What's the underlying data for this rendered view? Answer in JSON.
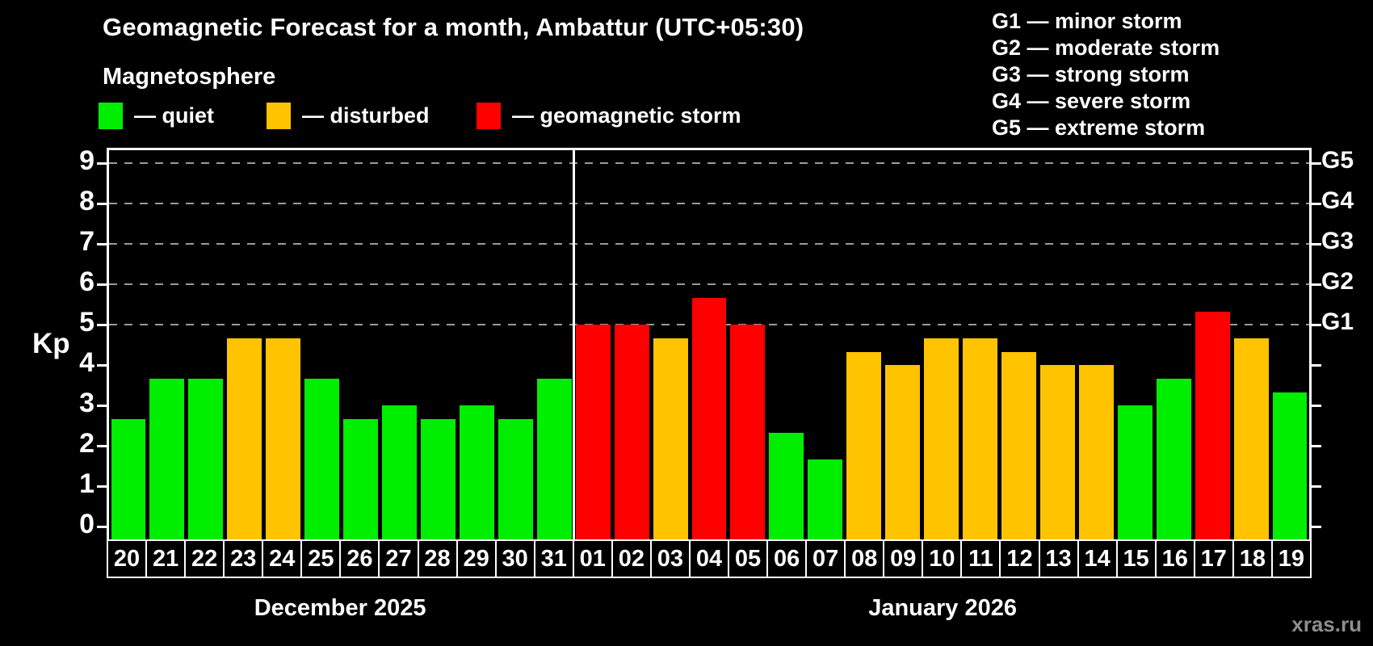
{
  "title": "Geomagnetic Forecast for a month, Ambattur (UTC+05:30)",
  "subtitle": "Magnetosphere",
  "magnetosphere_legend": [
    {
      "key": "quiet",
      "label": "— quiet"
    },
    {
      "key": "disturbed",
      "label": "— disturbed"
    },
    {
      "key": "storm",
      "label": "— geomagnetic storm"
    }
  ],
  "storm_scale_legend": [
    "G1 — minor storm",
    "G2 — moderate storm",
    "G3 — strong storm",
    "G4 — severe storm",
    "G5 — extreme storm"
  ],
  "watermark": "xras.ru",
  "colors": {
    "quiet": "#00ee00",
    "disturbed": "#ffc300",
    "storm": "#ff0000",
    "background": "#000000",
    "grid": "#9a9a9a",
    "axis": "#ffffff",
    "watermark": "#8e8e8e"
  },
  "chart_data": {
    "type": "bar",
    "ylabel": "Kp",
    "ylim": [
      0,
      9
    ],
    "y_ticks": [
      0,
      1,
      2,
      3,
      4,
      5,
      6,
      7,
      8,
      9
    ],
    "gridlines_at_kp": [
      5,
      6,
      7,
      8,
      9
    ],
    "grid_style": "dashed",
    "legend_position": "top",
    "right_axis": [
      {
        "label": "G1",
        "kp": 5
      },
      {
        "label": "G2",
        "kp": 6
      },
      {
        "label": "G3",
        "kp": 7
      },
      {
        "label": "G4",
        "kp": 8
      },
      {
        "label": "G5",
        "kp": 9
      }
    ],
    "groups": [
      {
        "label": "December 2025",
        "bars": [
          {
            "day": "20",
            "kp": 2.67,
            "status": "quiet"
          },
          {
            "day": "21",
            "kp": 3.67,
            "status": "quiet"
          },
          {
            "day": "22",
            "kp": 3.67,
            "status": "quiet"
          },
          {
            "day": "23",
            "kp": 4.67,
            "status": "disturbed"
          },
          {
            "day": "24",
            "kp": 4.67,
            "status": "disturbed"
          },
          {
            "day": "25",
            "kp": 3.67,
            "status": "quiet"
          },
          {
            "day": "26",
            "kp": 2.67,
            "status": "quiet"
          },
          {
            "day": "27",
            "kp": 3.0,
            "status": "quiet"
          },
          {
            "day": "28",
            "kp": 2.67,
            "status": "quiet"
          },
          {
            "day": "29",
            "kp": 3.0,
            "status": "quiet"
          },
          {
            "day": "30",
            "kp": 2.67,
            "status": "quiet"
          },
          {
            "day": "31",
            "kp": 3.67,
            "status": "quiet"
          }
        ]
      },
      {
        "label": "January 2026",
        "bars": [
          {
            "day": "01",
            "kp": 5.0,
            "status": "storm"
          },
          {
            "day": "02",
            "kp": 5.0,
            "status": "storm"
          },
          {
            "day": "03",
            "kp": 4.67,
            "status": "disturbed"
          },
          {
            "day": "04",
            "kp": 5.67,
            "status": "storm"
          },
          {
            "day": "05",
            "kp": 5.0,
            "status": "storm"
          },
          {
            "day": "06",
            "kp": 2.33,
            "status": "quiet"
          },
          {
            "day": "07",
            "kp": 1.67,
            "status": "quiet"
          },
          {
            "day": "08",
            "kp": 4.33,
            "status": "disturbed"
          },
          {
            "day": "09",
            "kp": 4.0,
            "status": "disturbed"
          },
          {
            "day": "10",
            "kp": 4.67,
            "status": "disturbed"
          },
          {
            "day": "11",
            "kp": 4.67,
            "status": "disturbed"
          },
          {
            "day": "12",
            "kp": 4.33,
            "status": "disturbed"
          },
          {
            "day": "13",
            "kp": 4.0,
            "status": "disturbed"
          },
          {
            "day": "14",
            "kp": 4.0,
            "status": "disturbed"
          },
          {
            "day": "15",
            "kp": 3.0,
            "status": "quiet"
          },
          {
            "day": "16",
            "kp": 3.67,
            "status": "quiet"
          },
          {
            "day": "17",
            "kp": 5.33,
            "status": "storm"
          },
          {
            "day": "18",
            "kp": 4.67,
            "status": "disturbed"
          },
          {
            "day": "19",
            "kp": 3.33,
            "status": "quiet"
          }
        ]
      }
    ]
  }
}
